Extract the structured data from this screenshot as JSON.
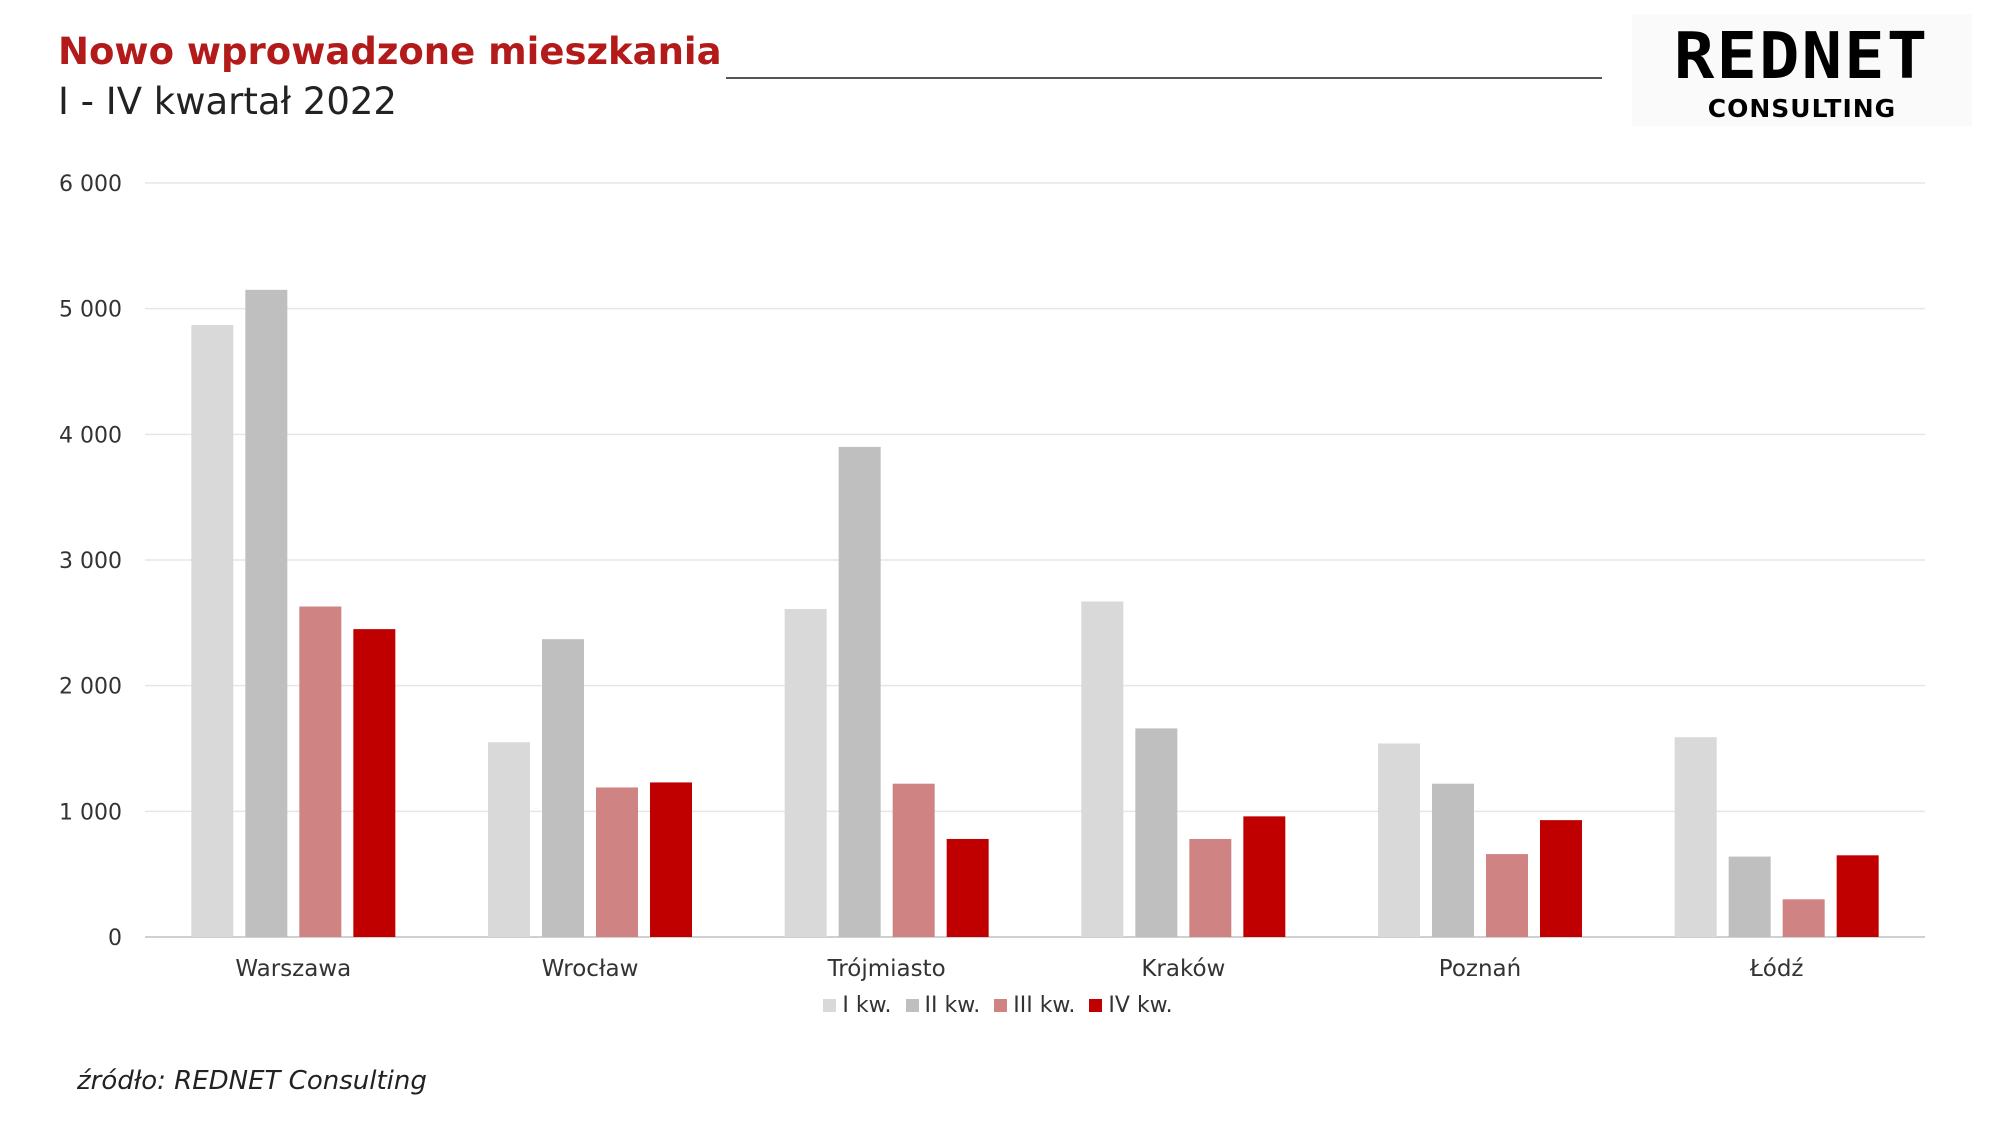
{
  "header": {
    "title": "Nowo wprowadzone mieszkania",
    "subtitle": "I - IV kwartał 2022"
  },
  "logo": {
    "wordmark": "REDNET",
    "tagline": "CONSULTING"
  },
  "source": "źródło: REDNET Consulting",
  "colors": {
    "title": "#b31b1b",
    "series": [
      "#d9d9d9",
      "#bfbfbf",
      "#d08383",
      "#c00000"
    ],
    "gridline": "#e6e6e6"
  },
  "chart_data": {
    "type": "bar",
    "categories": [
      "Warszawa",
      "Wrocław",
      "Trójmiasto",
      "Kraków",
      "Poznań",
      "Łódź"
    ],
    "series": [
      {
        "name": "I kw.",
        "values": [
          4870,
          1550,
          2610,
          2670,
          1540,
          1590
        ]
      },
      {
        "name": "II kw.",
        "values": [
          5150,
          2370,
          3900,
          1660,
          1220,
          640
        ]
      },
      {
        "name": "III kw.",
        "values": [
          2630,
          1190,
          1220,
          780,
          660,
          300
        ]
      },
      {
        "name": "IV kw.",
        "values": [
          2450,
          1230,
          780,
          960,
          930,
          650
        ]
      }
    ],
    "ylim": [
      0,
      6000
    ],
    "yticks": [
      "0",
      "1 000",
      "2 000",
      "3 000",
      "4 000",
      "5 000",
      "6 000"
    ],
    "grid": true,
    "legend_position": "bottom"
  }
}
